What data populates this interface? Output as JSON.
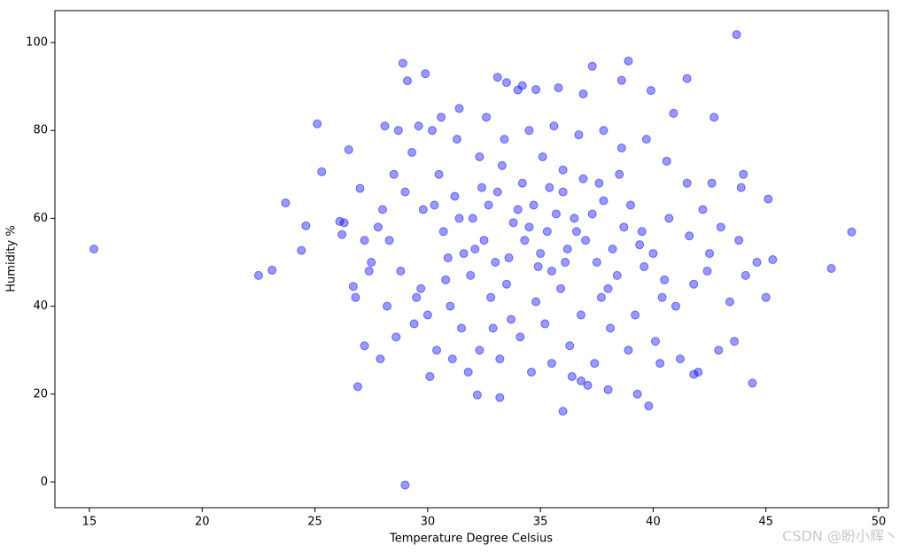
{
  "chart_data": {
    "type": "scatter",
    "xlabel": "Temperature Degree Celsius",
    "ylabel": "Humidity %",
    "annotation": "CSDN @盼小辉丶",
    "color": "#0000ff",
    "xlim": [
      13.47,
      50.43
    ],
    "ylim": [
      -5.85,
      107.26
    ],
    "xticks": [
      15,
      20,
      25,
      30,
      35,
      40,
      45,
      50
    ],
    "yticks": [
      0,
      20,
      40,
      60,
      80,
      100
    ],
    "grid": false,
    "x": [
      15.2,
      22.5,
      23.1,
      23.7,
      24.4,
      24.6,
      25.1,
      25.3,
      26.2,
      26.1,
      26.5,
      26.7,
      26.9,
      27.0,
      27.2,
      29.0,
      28.9,
      29.9,
      29.1,
      43.7,
      38.9,
      37.3,
      41.5,
      33.1,
      47.9,
      48.8,
      44.4,
      45.3,
      45.1,
      45.0,
      39.8,
      36.0,
      33.2,
      32.2,
      30.1,
      42.7,
      40.9,
      39.9,
      38.6,
      36.9,
      35.8,
      34.8,
      34.0,
      33.5,
      34.2,
      30.5,
      31.2,
      32.0,
      32.5,
      33.0,
      33.5,
      34.0,
      34.5,
      35.0,
      35.5,
      36.0,
      36.5,
      37.0,
      37.5,
      38.0,
      38.5,
      39.0,
      39.5,
      40.0,
      40.5,
      31.0,
      31.5,
      32.3,
      33.2,
      34.1,
      35.2,
      36.3,
      37.4,
      38.1,
      39.2,
      40.1,
      41.0,
      41.8,
      42.5,
      43.0,
      42.2,
      41.5,
      40.6,
      39.7,
      38.6,
      37.8,
      36.7,
      35.6,
      34.5,
      33.4,
      32.3,
      31.3,
      30.2,
      29.3,
      28.5,
      28.0,
      28.3,
      28.8,
      29.5,
      30.0,
      30.8,
      31.6,
      32.4,
      33.3,
      34.2,
      35.1,
      36.0,
      36.9,
      37.8,
      38.7,
      39.6,
      40.4,
      38.9,
      37.1,
      36.4,
      35.5,
      34.6,
      33.7,
      32.8,
      31.9,
      30.7,
      29.8,
      29.0,
      27.8,
      27.5,
      28.2,
      28.6,
      27.9,
      29.4,
      30.4,
      31.8,
      32.9,
      34.8,
      35.9,
      36.8,
      37.7,
      38.4,
      39.4,
      40.7,
      41.6,
      42.4,
      43.4,
      44.1,
      43.9,
      44.6,
      34.3,
      35.3,
      36.2,
      33.8,
      34.7,
      35.7,
      36.6,
      33.6,
      34.9,
      36.1,
      37.3,
      32.7,
      31.4,
      30.3,
      33.1,
      35.4,
      37.6,
      38.2,
      32.1,
      30.9,
      26.3,
      27.2,
      26.8,
      27.4,
      42.9,
      43.6,
      41.2,
      42.0,
      40.3,
      39.3,
      38.0,
      36.8,
      31.1,
      29.7,
      28.7,
      28.1,
      29.6,
      30.6,
      31.4,
      32.6,
      41.8,
      44.0,
      42.6,
      43.8
    ],
    "values": [
      53,
      47,
      48.2,
      63.5,
      52.7,
      58.3,
      81.5,
      70.6,
      56.3,
      59.3,
      75.6,
      44.5,
      21.7,
      66.8,
      31,
      -0.7,
      95.3,
      92.9,
      91.3,
      101.8,
      95.8,
      94.6,
      91.8,
      92.1,
      48.6,
      56.9,
      22.5,
      50.6,
      64.4,
      42,
      17.3,
      16.1,
      19.2,
      19.8,
      24,
      83,
      83.9,
      89.1,
      91.4,
      88.3,
      89.7,
      89.3,
      89.2,
      90.9,
      90.2,
      70,
      65,
      60,
      55,
      50,
      45,
      62,
      58,
      52,
      48,
      66,
      60,
      55,
      50,
      44,
      70,
      63,
      57,
      52,
      46,
      40,
      35,
      30,
      28,
      33,
      36,
      31,
      27,
      35,
      38,
      32,
      40,
      45,
      52,
      58,
      62,
      68,
      73,
      78,
      76,
      80,
      79,
      81,
      80,
      78,
      74,
      78,
      80,
      75,
      70,
      62,
      55,
      48,
      42,
      38,
      46,
      52,
      67,
      72,
      68,
      74,
      71,
      69,
      64,
      58,
      49,
      42,
      30,
      22,
      24,
      27,
      25,
      37,
      42,
      47,
      57,
      62,
      66,
      58,
      50,
      40,
      33,
      28,
      36,
      30,
      25,
      35,
      41,
      44,
      38,
      42,
      47,
      54,
      60,
      56,
      48,
      41,
      47,
      67,
      50,
      55,
      57,
      53,
      59,
      63,
      61,
      57,
      51,
      49,
      50,
      61,
      63,
      60,
      63,
      66,
      67,
      68,
      53,
      53,
      51,
      59,
      55,
      42,
      48,
      30,
      32,
      28,
      25,
      27,
      20,
      21,
      23,
      28,
      44,
      80,
      81,
      81,
      83,
      85,
      83,
      24.5,
      70,
      68,
      55
    ]
  }
}
